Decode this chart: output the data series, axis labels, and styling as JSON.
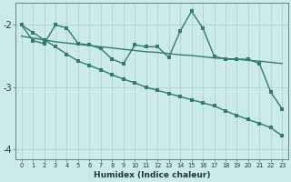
{
  "xlabel": "Humidex (Indice chaleur)",
  "bg_color": "#cceae8",
  "line_color": "#2e7d6e",
  "grid_color": "#aed4d0",
  "xlim": [
    -0.5,
    23.5
  ],
  "ylim": [
    -4.15,
    -1.65
  ],
  "yticks": [
    -4,
    -3,
    -2
  ],
  "ytick_labels": [
    "-4",
    "-3",
    "-2"
  ],
  "series_A_x": [
    0,
    1,
    2,
    3,
    4,
    5,
    6,
    7,
    8,
    9,
    10,
    11,
    12,
    13,
    14,
    15,
    16,
    17,
    18,
    19,
    20,
    21,
    22,
    23
  ],
  "series_A_y": [
    -2.0,
    -2.25,
    -2.3,
    -2.0,
    -2.05,
    -2.3,
    -2.32,
    -2.38,
    -2.55,
    -2.62,
    -2.32,
    -2.35,
    -2.35,
    -2.52,
    -2.1,
    -1.78,
    -2.05,
    -2.5,
    -2.55,
    -2.55,
    -2.55,
    -2.62,
    -3.08,
    -3.35
  ],
  "series_B_x": [
    0,
    1,
    2,
    3,
    4,
    5,
    6,
    7,
    8,
    9,
    10,
    11,
    12,
    13,
    14,
    15,
    16,
    17,
    18,
    19,
    20,
    21,
    22,
    23
  ],
  "series_B_y": [
    -2.18,
    -2.21,
    -2.24,
    -2.27,
    -2.29,
    -2.31,
    -2.33,
    -2.35,
    -2.37,
    -2.39,
    -2.41,
    -2.43,
    -2.44,
    -2.46,
    -2.48,
    -2.49,
    -2.51,
    -2.53,
    -2.54,
    -2.55,
    -2.57,
    -2.58,
    -2.6,
    -2.62
  ],
  "series_C_x": [
    0,
    1,
    2,
    3,
    4,
    5,
    6,
    7,
    8,
    9,
    10,
    11,
    12,
    13,
    14,
    15,
    16,
    17,
    18,
    19,
    20,
    21,
    22,
    23
  ],
  "series_C_y": [
    -2.0,
    -2.12,
    -2.24,
    -2.35,
    -2.47,
    -2.58,
    -2.65,
    -2.72,
    -2.8,
    -2.87,
    -2.93,
    -3.0,
    -3.05,
    -3.1,
    -3.15,
    -3.2,
    -3.25,
    -3.3,
    -3.38,
    -3.45,
    -3.52,
    -3.58,
    -3.65,
    -3.78
  ]
}
